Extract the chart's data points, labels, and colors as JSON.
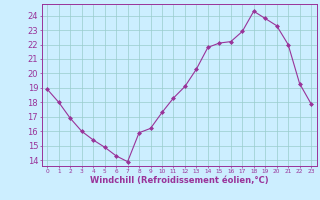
{
  "x": [
    0,
    1,
    2,
    3,
    4,
    5,
    6,
    7,
    8,
    9,
    10,
    11,
    12,
    13,
    14,
    15,
    16,
    17,
    18,
    19,
    20,
    21,
    22,
    23
  ],
  "y": [
    18.9,
    18.0,
    16.9,
    16.0,
    15.4,
    14.9,
    14.3,
    13.9,
    15.9,
    16.2,
    17.3,
    18.3,
    19.1,
    20.3,
    21.8,
    22.1,
    22.2,
    22.9,
    24.3,
    23.8,
    23.3,
    22.0,
    19.3,
    17.9
  ],
  "line_color": "#993399",
  "marker": "D",
  "marker_size": 2.0,
  "bg_color": "#cceeff",
  "grid_color": "#99cccc",
  "xlabel": "Windchill (Refroidissement éolien,°C)",
  "xlabel_color": "#993399",
  "ylabel_ticks": [
    14,
    15,
    16,
    17,
    18,
    19,
    20,
    21,
    22,
    23,
    24
  ],
  "xtick_labels": [
    "0",
    "1",
    "2",
    "3",
    "4",
    "5",
    "6",
    "7",
    "8",
    "9",
    "10",
    "11",
    "12",
    "13",
    "14",
    "15",
    "16",
    "17",
    "18",
    "19",
    "20",
    "21",
    "22",
    "23"
  ],
  "ylim": [
    13.6,
    24.8
  ],
  "xlim": [
    -0.5,
    23.5
  ],
  "tick_color": "#993399",
  "axis_color": "#993399",
  "ytick_fontsize": 6.0,
  "xtick_fontsize": 4.2,
  "xlabel_fontsize": 6.0
}
